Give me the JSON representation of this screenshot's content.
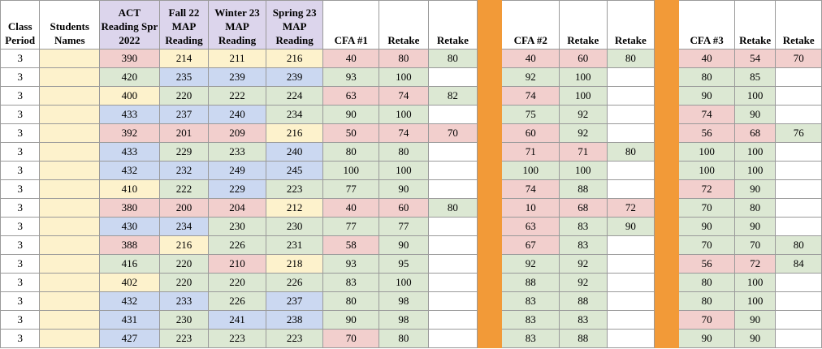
{
  "colors": {
    "red": "#f2cfcd",
    "green": "#dce8d3",
    "blue": "#cbd8f1",
    "yellow": "#fdf2cc",
    "purple": "#dcd5ec",
    "white": "#ffffff",
    "orange": "#f29a38"
  },
  "headers": {
    "class_period": "Class Period",
    "students_names": "Students Names",
    "act": "ACT Reading Spr 2022",
    "fall": "Fall 22 MAP Reading",
    "winter": "Winter 23 MAP Reading",
    "spring": "Spring 23 MAP Reading",
    "cfa1": "CFA #1",
    "retake": "Retake",
    "cfa2": "CFA #2",
    "cfa3": "CFA #3"
  },
  "rows": [
    {
      "period": "3",
      "act": "390",
      "fall": "214",
      "winter": "211",
      "spring": "216",
      "cfa1": "40",
      "cfa1_r1": "80",
      "cfa1_r2": "80",
      "cfa2": "40",
      "cfa2_r1": "60",
      "cfa2_r2": "80",
      "cfa3": "40",
      "cfa3_r1": "54",
      "cfa3_r2": "70"
    },
    {
      "period": "3",
      "act": "420",
      "fall": "235",
      "winter": "239",
      "spring": "239",
      "cfa1": "93",
      "cfa1_r1": "100",
      "cfa1_r2": "",
      "cfa2": "92",
      "cfa2_r1": "100",
      "cfa2_r2": "",
      "cfa3": "80",
      "cfa3_r1": "85",
      "cfa3_r2": ""
    },
    {
      "period": "3",
      "act": "400",
      "fall": "220",
      "winter": "222",
      "spring": "224",
      "cfa1": "63",
      "cfa1_r1": "74",
      "cfa1_r2": "82",
      "cfa2": "74",
      "cfa2_r1": "100",
      "cfa2_r2": "",
      "cfa3": "90",
      "cfa3_r1": "100",
      "cfa3_r2": ""
    },
    {
      "period": "3",
      "act": "433",
      "fall": "237",
      "winter": "240",
      "spring": "234",
      "cfa1": "90",
      "cfa1_r1": "100",
      "cfa1_r2": "",
      "cfa2": "75",
      "cfa2_r1": "92",
      "cfa2_r2": "",
      "cfa3": "74",
      "cfa3_r1": "90",
      "cfa3_r2": ""
    },
    {
      "period": "3",
      "act": "392",
      "fall": "201",
      "winter": "209",
      "spring": "216",
      "cfa1": "50",
      "cfa1_r1": "74",
      "cfa1_r2": "70",
      "cfa2": "60",
      "cfa2_r1": "92",
      "cfa2_r2": "",
      "cfa3": "56",
      "cfa3_r1": "68",
      "cfa3_r2": "76"
    },
    {
      "period": "3",
      "act": "433",
      "fall": "229",
      "winter": "233",
      "spring": "240",
      "cfa1": "80",
      "cfa1_r1": "80",
      "cfa1_r2": "",
      "cfa2": "71",
      "cfa2_r1": "71",
      "cfa2_r2": "80",
      "cfa3": "100",
      "cfa3_r1": "100",
      "cfa3_r2": ""
    },
    {
      "period": "3",
      "act": "432",
      "fall": "232",
      "winter": "249",
      "spring": "245",
      "cfa1": "100",
      "cfa1_r1": "100",
      "cfa1_r2": "",
      "cfa2": "100",
      "cfa2_r1": "100",
      "cfa2_r2": "",
      "cfa3": "100",
      "cfa3_r1": "100",
      "cfa3_r2": ""
    },
    {
      "period": "3",
      "act": "410",
      "fall": "222",
      "winter": "229",
      "spring": "223",
      "cfa1": "77",
      "cfa1_r1": "90",
      "cfa1_r2": "",
      "cfa2": "74",
      "cfa2_r1": "88",
      "cfa2_r2": "",
      "cfa3": "72",
      "cfa3_r1": "90",
      "cfa3_r2": ""
    },
    {
      "period": "3",
      "act": "380",
      "fall": "200",
      "winter": "204",
      "spring": "212",
      "cfa1": "40",
      "cfa1_r1": "60",
      "cfa1_r2": "80",
      "cfa2": "10",
      "cfa2_r1": "68",
      "cfa2_r2": "72",
      "cfa3": "70",
      "cfa3_r1": "80",
      "cfa3_r2": ""
    },
    {
      "period": "3",
      "act": "430",
      "fall": "234",
      "winter": "230",
      "spring": "230",
      "cfa1": "77",
      "cfa1_r1": "77",
      "cfa1_r2": "",
      "cfa2": "63",
      "cfa2_r1": "83",
      "cfa2_r2": "90",
      "cfa3": "90",
      "cfa3_r1": "90",
      "cfa3_r2": ""
    },
    {
      "period": "3",
      "act": "388",
      "fall": "216",
      "winter": "226",
      "spring": "231",
      "cfa1": "58",
      "cfa1_r1": "90",
      "cfa1_r2": "",
      "cfa2": "67",
      "cfa2_r1": "83",
      "cfa2_r2": "",
      "cfa3": "70",
      "cfa3_r1": "70",
      "cfa3_r2": "80"
    },
    {
      "period": "3",
      "act": "416",
      "fall": "220",
      "winter": "210",
      "spring": "218",
      "cfa1": "93",
      "cfa1_r1": "95",
      "cfa1_r2": "",
      "cfa2": "92",
      "cfa2_r1": "92",
      "cfa2_r2": "",
      "cfa3": "56",
      "cfa3_r1": "72",
      "cfa3_r2": "84"
    },
    {
      "period": "3",
      "act": "402",
      "fall": "220",
      "winter": "220",
      "spring": "226",
      "cfa1": "83",
      "cfa1_r1": "100",
      "cfa1_r2": "",
      "cfa2": "88",
      "cfa2_r1": "92",
      "cfa2_r2": "",
      "cfa3": "80",
      "cfa3_r1": "100",
      "cfa3_r2": ""
    },
    {
      "period": "3",
      "act": "432",
      "fall": "233",
      "winter": "226",
      "spring": "237",
      "cfa1": "80",
      "cfa1_r1": "98",
      "cfa1_r2": "",
      "cfa2": "83",
      "cfa2_r1": "88",
      "cfa2_r2": "",
      "cfa3": "80",
      "cfa3_r1": "100",
      "cfa3_r2": ""
    },
    {
      "period": "3",
      "act": "431",
      "fall": "230",
      "winter": "241",
      "spring": "238",
      "cfa1": "90",
      "cfa1_r1": "98",
      "cfa1_r2": "",
      "cfa2": "83",
      "cfa2_r1": "83",
      "cfa2_r2": "",
      "cfa3": "70",
      "cfa3_r1": "90",
      "cfa3_r2": ""
    },
    {
      "period": "3",
      "act": "427",
      "fall": "223",
      "winter": "223",
      "spring": "223",
      "cfa1": "70",
      "cfa1_r1": "80",
      "cfa1_r2": "",
      "cfa2": "83",
      "cfa2_r1": "88",
      "cfa2_r2": "",
      "cfa3": "90",
      "cfa3_r1": "90",
      "cfa3_r2": ""
    }
  ],
  "fills": [
    {
      "act": "red",
      "fall": "yellow",
      "winter": "yellow",
      "spring": "yellow",
      "cfa1": "red",
      "cfa1_r1": "red",
      "cfa1_r2": "green",
      "cfa2": "red",
      "cfa2_r1": "red",
      "cfa2_r2": "green",
      "cfa3": "red",
      "cfa3_r1": "red",
      "cfa3_r2": "red"
    },
    {
      "act": "green",
      "fall": "blue",
      "winter": "blue",
      "spring": "blue",
      "cfa1": "green",
      "cfa1_r1": "green",
      "cfa1_r2": "white",
      "cfa2": "green",
      "cfa2_r1": "green",
      "cfa2_r2": "white",
      "cfa3": "green",
      "cfa3_r1": "green",
      "cfa3_r2": "white"
    },
    {
      "act": "yellow",
      "fall": "green",
      "winter": "green",
      "spring": "green",
      "cfa1": "red",
      "cfa1_r1": "red",
      "cfa1_r2": "green",
      "cfa2": "red",
      "cfa2_r1": "green",
      "cfa2_r2": "white",
      "cfa3": "green",
      "cfa3_r1": "green",
      "cfa3_r2": "white"
    },
    {
      "act": "blue",
      "fall": "blue",
      "winter": "blue",
      "spring": "green",
      "cfa1": "green",
      "cfa1_r1": "green",
      "cfa1_r2": "white",
      "cfa2": "green",
      "cfa2_r1": "green",
      "cfa2_r2": "white",
      "cfa3": "red",
      "cfa3_r1": "green",
      "cfa3_r2": "white"
    },
    {
      "act": "red",
      "fall": "red",
      "winter": "red",
      "spring": "yellow",
      "cfa1": "red",
      "cfa1_r1": "red",
      "cfa1_r2": "red",
      "cfa2": "red",
      "cfa2_r1": "green",
      "cfa2_r2": "white",
      "cfa3": "red",
      "cfa3_r1": "red",
      "cfa3_r2": "green"
    },
    {
      "act": "blue",
      "fall": "green",
      "winter": "green",
      "spring": "blue",
      "cfa1": "green",
      "cfa1_r1": "green",
      "cfa1_r2": "white",
      "cfa2": "red",
      "cfa2_r1": "red",
      "cfa2_r2": "green",
      "cfa3": "green",
      "cfa3_r1": "green",
      "cfa3_r2": "white"
    },
    {
      "act": "blue",
      "fall": "blue",
      "winter": "blue",
      "spring": "blue",
      "cfa1": "green",
      "cfa1_r1": "green",
      "cfa1_r2": "white",
      "cfa2": "green",
      "cfa2_r1": "green",
      "cfa2_r2": "white",
      "cfa3": "green",
      "cfa3_r1": "green",
      "cfa3_r2": "white"
    },
    {
      "act": "yellow",
      "fall": "green",
      "winter": "blue",
      "spring": "green",
      "cfa1": "green",
      "cfa1_r1": "green",
      "cfa1_r2": "white",
      "cfa2": "red",
      "cfa2_r1": "green",
      "cfa2_r2": "white",
      "cfa3": "red",
      "cfa3_r1": "green",
      "cfa3_r2": "white"
    },
    {
      "act": "red",
      "fall": "red",
      "winter": "red",
      "spring": "yellow",
      "cfa1": "red",
      "cfa1_r1": "red",
      "cfa1_r2": "green",
      "cfa2": "red",
      "cfa2_r1": "red",
      "cfa2_r2": "red",
      "cfa3": "green",
      "cfa3_r1": "green",
      "cfa3_r2": "white"
    },
    {
      "act": "blue",
      "fall": "blue",
      "winter": "green",
      "spring": "green",
      "cfa1": "green",
      "cfa1_r1": "green",
      "cfa1_r2": "white",
      "cfa2": "red",
      "cfa2_r1": "green",
      "cfa2_r2": "green",
      "cfa3": "green",
      "cfa3_r1": "green",
      "cfa3_r2": "white"
    },
    {
      "act": "red",
      "fall": "yellow",
      "winter": "green",
      "spring": "green",
      "cfa1": "red",
      "cfa1_r1": "green",
      "cfa1_r2": "white",
      "cfa2": "red",
      "cfa2_r1": "green",
      "cfa2_r2": "white",
      "cfa3": "green",
      "cfa3_r1": "green",
      "cfa3_r2": "green"
    },
    {
      "act": "green",
      "fall": "green",
      "winter": "red",
      "spring": "yellow",
      "cfa1": "green",
      "cfa1_r1": "green",
      "cfa1_r2": "white",
      "cfa2": "green",
      "cfa2_r1": "green",
      "cfa2_r2": "white",
      "cfa3": "red",
      "cfa3_r1": "red",
      "cfa3_r2": "green"
    },
    {
      "act": "yellow",
      "fall": "green",
      "winter": "green",
      "spring": "green",
      "cfa1": "green",
      "cfa1_r1": "green",
      "cfa1_r2": "white",
      "cfa2": "green",
      "cfa2_r1": "green",
      "cfa2_r2": "white",
      "cfa3": "green",
      "cfa3_r1": "green",
      "cfa3_r2": "white"
    },
    {
      "act": "blue",
      "fall": "blue",
      "winter": "green",
      "spring": "blue",
      "cfa1": "green",
      "cfa1_r1": "green",
      "cfa1_r2": "white",
      "cfa2": "green",
      "cfa2_r1": "green",
      "cfa2_r2": "white",
      "cfa3": "green",
      "cfa3_r1": "green",
      "cfa3_r2": "white"
    },
    {
      "act": "blue",
      "fall": "green",
      "winter": "blue",
      "spring": "blue",
      "cfa1": "green",
      "cfa1_r1": "green",
      "cfa1_r2": "white",
      "cfa2": "green",
      "cfa2_r1": "green",
      "cfa2_r2": "white",
      "cfa3": "red",
      "cfa3_r1": "green",
      "cfa3_r2": "white"
    },
    {
      "act": "blue",
      "fall": "green",
      "winter": "green",
      "spring": "green",
      "cfa1": "red",
      "cfa1_r1": "green",
      "cfa1_r2": "white",
      "cfa2": "green",
      "cfa2_r1": "green",
      "cfa2_r2": "white",
      "cfa3": "green",
      "cfa3_r1": "green",
      "cfa3_r2": "white"
    }
  ]
}
